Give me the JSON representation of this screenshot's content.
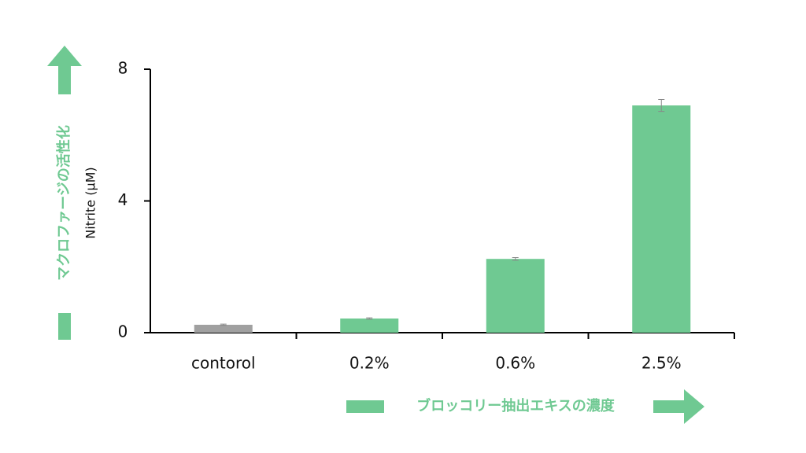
{
  "chart_data": {
    "type": "bar",
    "y_label": "Nitrite (μM)",
    "y_annotation": "マクロファージの活性化",
    "x_annotation": "ブロッコリー抽出エキスの濃度",
    "categories": [
      "contorol",
      "0.2%",
      "0.6%",
      "2.5%"
    ],
    "values": [
      0.24,
      0.43,
      2.24,
      6.9
    ],
    "errors": [
      0.02,
      0.02,
      0.04,
      0.18
    ],
    "colors": [
      "#a0a0a0",
      "#6fc992",
      "#6fc992",
      "#6fc992"
    ],
    "ylim": [
      0,
      8
    ],
    "yticks": [
      0,
      4,
      8
    ]
  }
}
